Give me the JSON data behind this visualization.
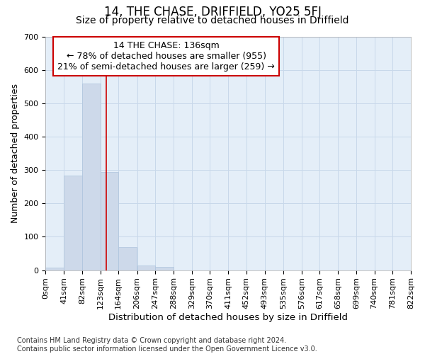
{
  "title": "14, THE CHASE, DRIFFIELD, YO25 5FJ",
  "subtitle": "Size of property relative to detached houses in Driffield",
  "xlabel": "Distribution of detached houses by size in Driffield",
  "ylabel": "Number of detached properties",
  "bin_edges": [
    0,
    41,
    82,
    123,
    164,
    206,
    247,
    288,
    329,
    370,
    411,
    452,
    493,
    535,
    576,
    617,
    658,
    699,
    740,
    781,
    822
  ],
  "bar_heights": [
    8,
    283,
    560,
    293,
    70,
    15,
    10,
    0,
    0,
    0,
    0,
    0,
    0,
    0,
    0,
    0,
    0,
    0,
    0,
    0
  ],
  "bar_color": "#cdd9ea",
  "bar_edge_color": "#aec4dd",
  "bar_linewidth": 0.5,
  "vline_x": 136,
  "vline_color": "#cc0000",
  "vline_linewidth": 1.2,
  "annotation_text": "14 THE CHASE: 136sqm\n← 78% of detached houses are smaller (955)\n21% of semi-detached houses are larger (259) →",
  "annotation_box_color": "white",
  "annotation_box_edge_color": "#cc0000",
  "annotation_fontsize": 9,
  "ylim": [
    0,
    700
  ],
  "yticks": [
    0,
    100,
    200,
    300,
    400,
    500,
    600,
    700
  ],
  "xlim": [
    0,
    822
  ],
  "grid_color": "#c8d8ea",
  "background_color": "#e4eef8",
  "footnote": "Contains HM Land Registry data © Crown copyright and database right 2024.\nContains public sector information licensed under the Open Government Licence v3.0.",
  "title_fontsize": 12,
  "subtitle_fontsize": 10,
  "xlabel_fontsize": 9.5,
  "ylabel_fontsize": 9,
  "footnote_fontsize": 7,
  "tick_label_fontsize": 8
}
